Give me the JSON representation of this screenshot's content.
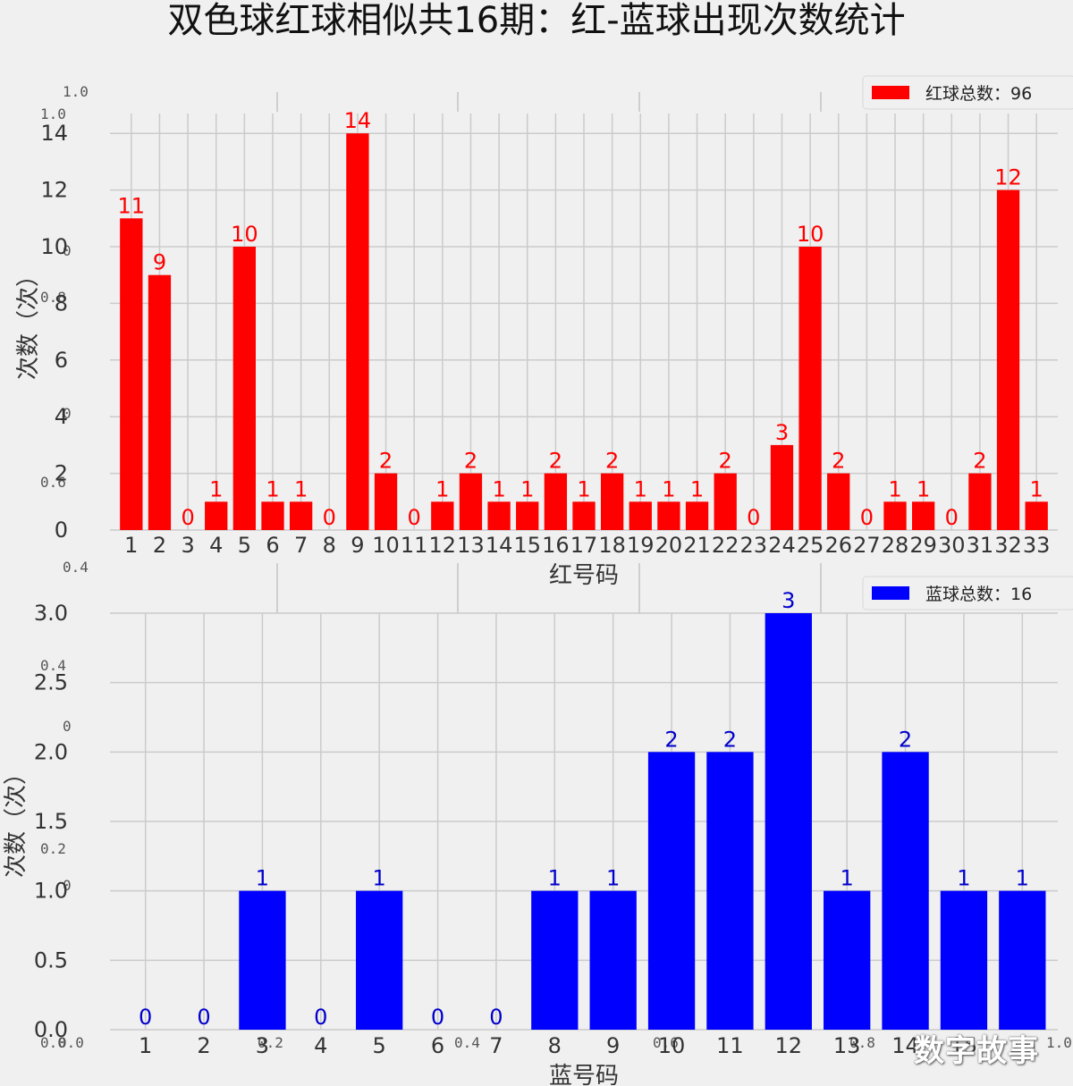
{
  "title": "双色球红球相似共16期：红-蓝球出现次数统计",
  "watermark": "数字故事",
  "ghost_axis": {
    "top_labels": [
      "1.0",
      "1.0"
    ],
    "left_labels": [
      "0",
      "0.8",
      "0",
      "0.6",
      "0.4",
      "0.4",
      "0",
      "0.2",
      "0",
      "0.0"
    ],
    "bottom_labels": [
      "0.0",
      "0.2",
      "0.4",
      "0.6",
      "0.8",
      "1.0"
    ]
  },
  "chart_data": [
    {
      "type": "bar",
      "color": "#ff0000",
      "label_color": "#ff0000",
      "categories": [
        "1",
        "2",
        "3",
        "4",
        "5",
        "6",
        "7",
        "8",
        "9",
        "10",
        "11",
        "12",
        "13",
        "14",
        "15",
        "16",
        "17",
        "18",
        "19",
        "20",
        "21",
        "22",
        "23",
        "24",
        "25",
        "26",
        "27",
        "28",
        "29",
        "30",
        "31",
        "32",
        "33"
      ],
      "series": [
        {
          "name": "红球总数：96",
          "values": [
            11,
            9,
            0,
            1,
            10,
            1,
            1,
            0,
            14,
            2,
            0,
            1,
            2,
            1,
            1,
            2,
            1,
            2,
            1,
            1,
            1,
            2,
            0,
            3,
            10,
            2,
            0,
            1,
            1,
            0,
            2,
            12,
            1
          ]
        }
      ],
      "xlabel": "红号码",
      "ylabel": "次数（次）",
      "ylim": [
        0,
        14.7
      ],
      "yticks": [
        0,
        2,
        4,
        6,
        8,
        10,
        12,
        14
      ],
      "ytick_labels": [
        "0",
        "2",
        "4",
        "6",
        "8",
        "10",
        "12",
        "14"
      ],
      "grid": true,
      "legend": "top-right"
    },
    {
      "type": "bar",
      "color": "#0000ff",
      "label_color": "#0000cc",
      "categories": [
        "1",
        "2",
        "3",
        "4",
        "5",
        "6",
        "7",
        "8",
        "9",
        "10",
        "11",
        "12",
        "13",
        "14",
        "15",
        "16"
      ],
      "series": [
        {
          "name": "蓝球总数：16",
          "values": [
            0,
            0,
            1,
            0,
            1,
            0,
            0,
            1,
            1,
            2,
            2,
            3,
            1,
            2,
            1,
            1
          ]
        }
      ],
      "xlabel": "蓝号码",
      "ylabel": "次数（次）",
      "ylim": [
        0,
        3.0
      ],
      "yticks": [
        0.0,
        0.5,
        1.0,
        1.5,
        2.0,
        2.5,
        3.0
      ],
      "ytick_labels": [
        "0.0",
        "0.5",
        "1.0",
        "1.5",
        "2.0",
        "2.5",
        "3.0"
      ],
      "grid": true,
      "legend": "top-right"
    }
  ]
}
